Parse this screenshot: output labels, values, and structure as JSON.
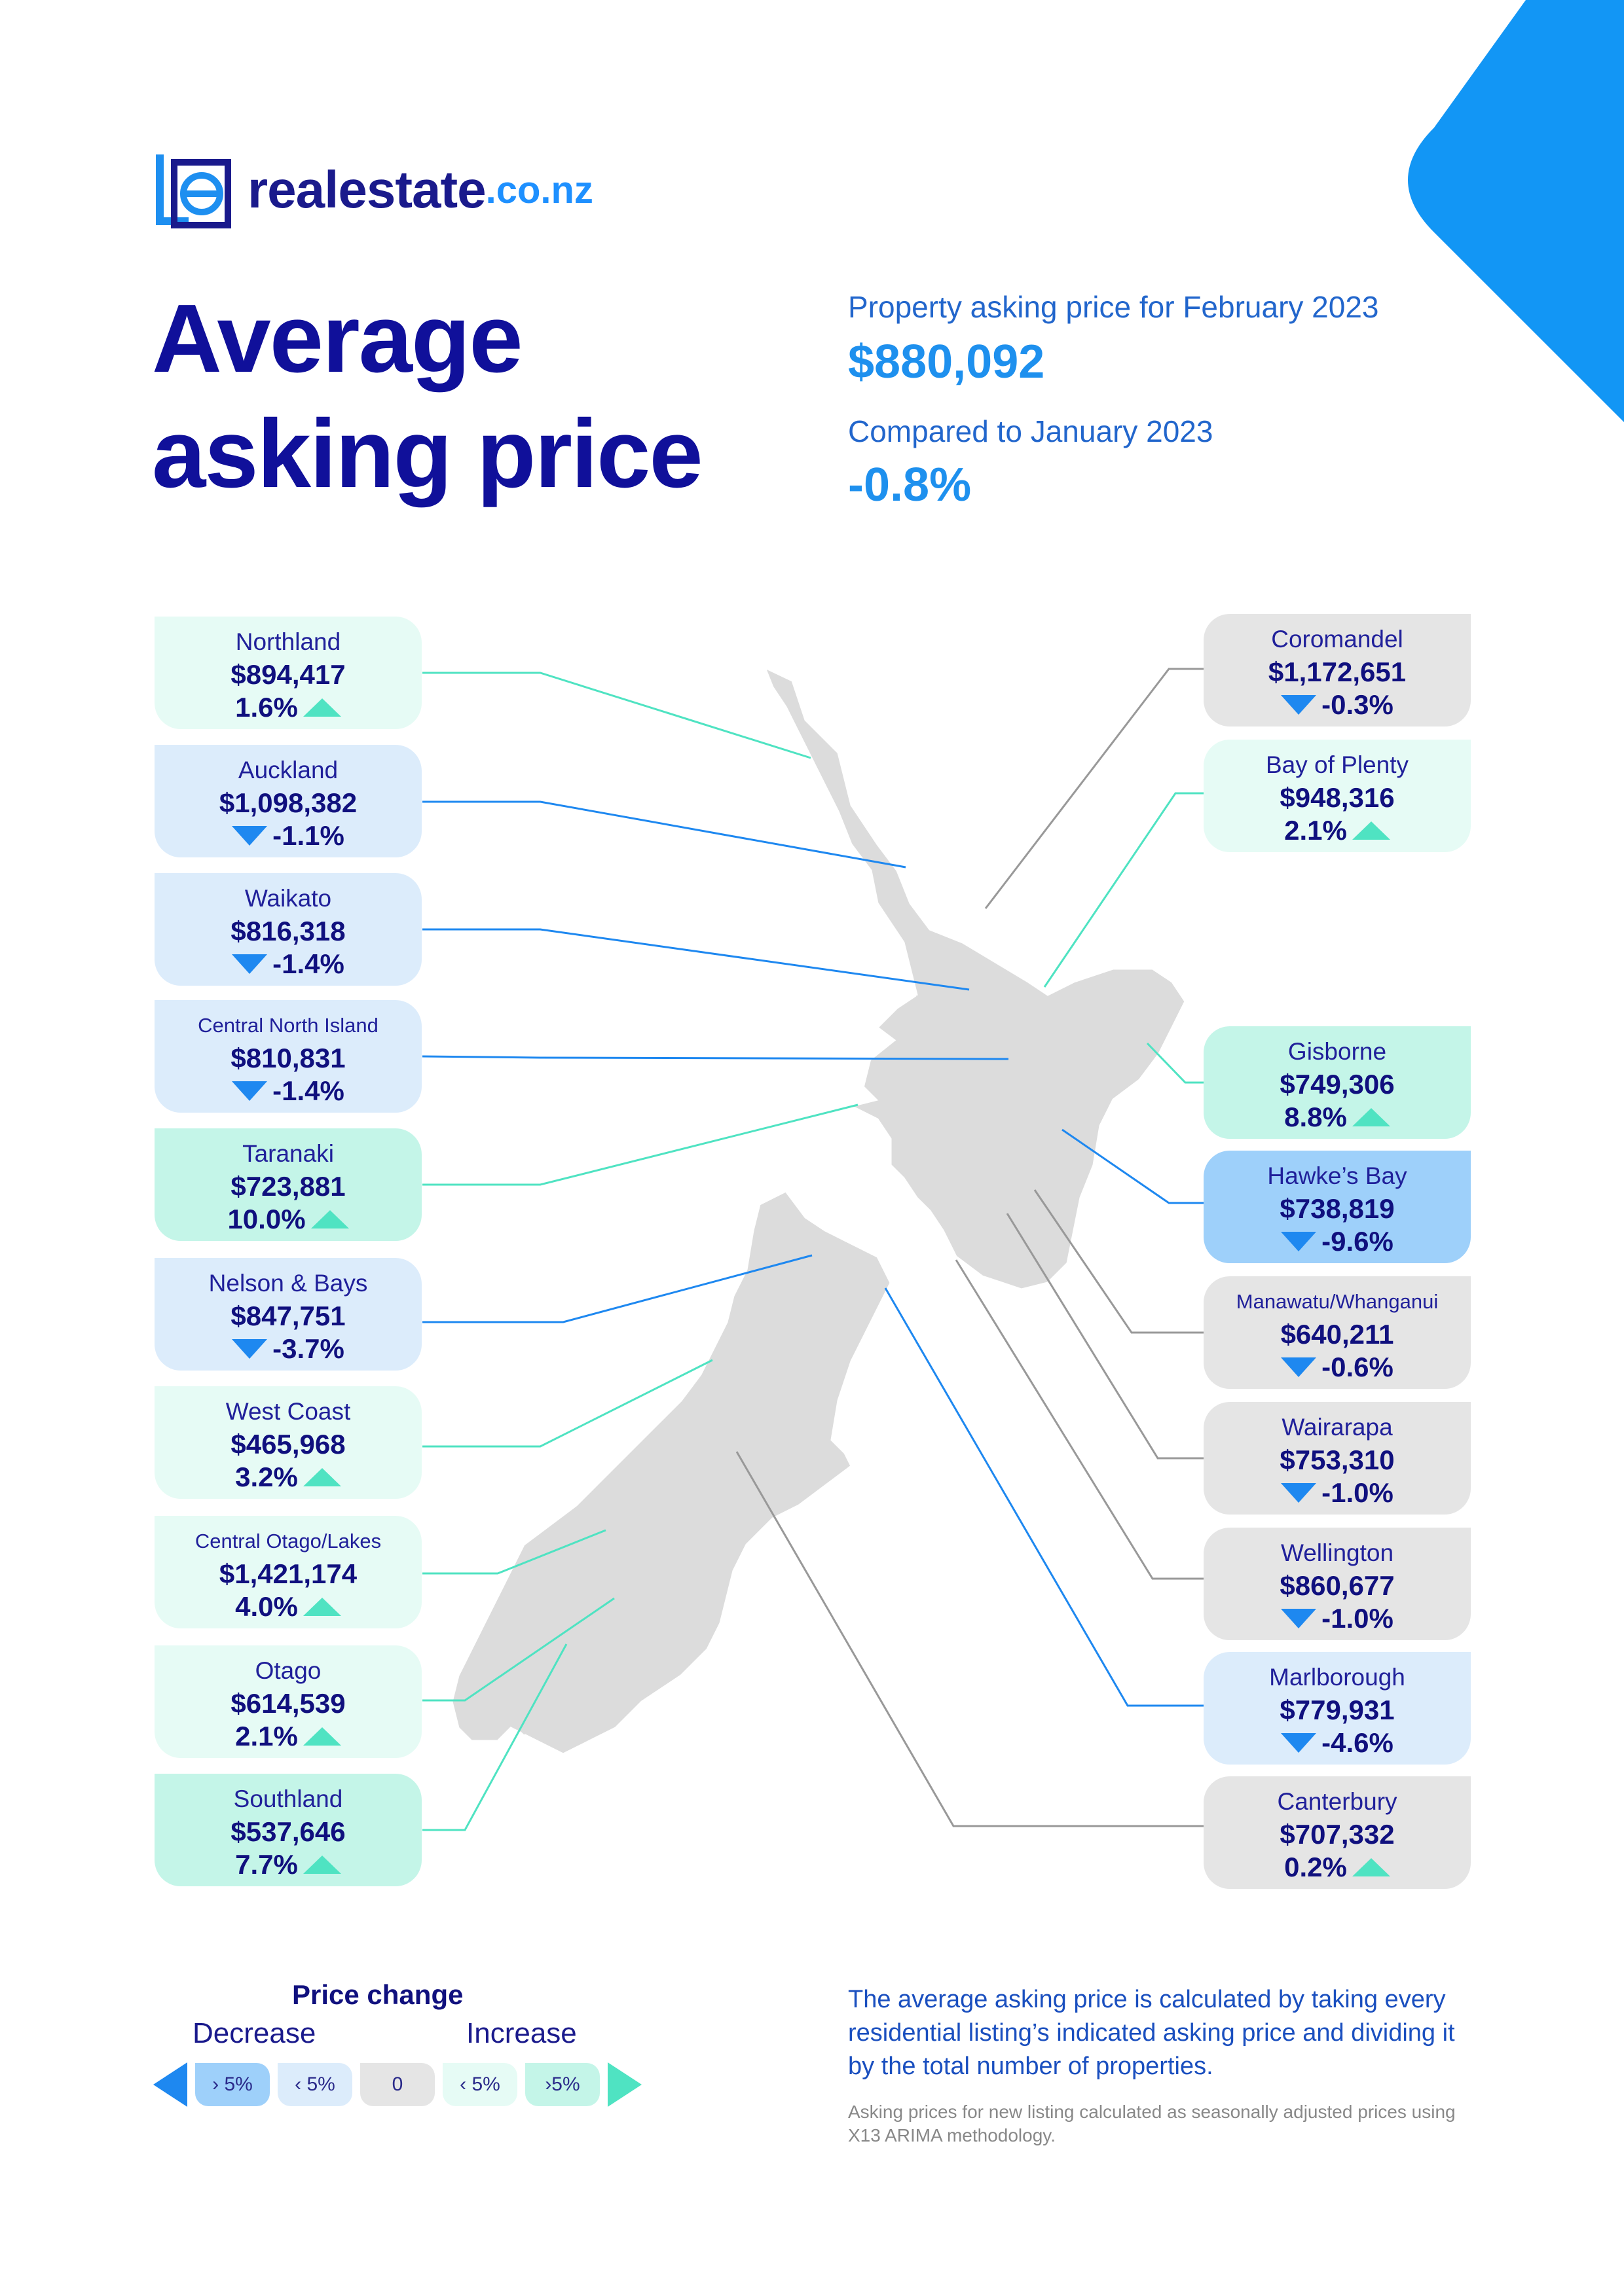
{
  "brand": {
    "word": "realestate",
    "suffix": ".co.nz"
  },
  "title": {
    "line1": "Average",
    "line2": "asking price"
  },
  "summary": {
    "label1": "Property asking price for February 2023",
    "value1": "$880,092",
    "label2": "Compared to January 2023",
    "value2": "-0.8%"
  },
  "colors": {
    "accent": "#1e90ff",
    "navy": "#10107e",
    "up": "#4fe3c2",
    "down": "#1e88f0"
  },
  "regions_left": [
    {
      "name": "Northland",
      "price": "$894,417",
      "change": "1.6%",
      "dir": "up"
    },
    {
      "name": "Auckland",
      "price": "$1,098,382",
      "change": "-1.1%",
      "dir": "down"
    },
    {
      "name": "Waikato",
      "price": "$816,318",
      "change": "-1.4%",
      "dir": "down"
    },
    {
      "name": "Central North Island",
      "price": "$810,831",
      "change": "-1.4%",
      "dir": "down"
    },
    {
      "name": "Taranaki",
      "price": "$723,881",
      "change": "10.0%",
      "dir": "up"
    },
    {
      "name": "Nelson & Bays",
      "price": "$847,751",
      "change": "-3.7%",
      "dir": "down"
    },
    {
      "name": "West Coast",
      "price": "$465,968",
      "change": "3.2%",
      "dir": "up"
    },
    {
      "name": "Central Otago/Lakes",
      "price": "$1,421,174",
      "change": "4.0%",
      "dir": "up"
    },
    {
      "name": "Otago",
      "price": "$614,539",
      "change": "2.1%",
      "dir": "up"
    },
    {
      "name": "Southland",
      "price": "$537,646",
      "change": "7.7%",
      "dir": "up"
    }
  ],
  "regions_right": [
    {
      "name": "Coromandel",
      "price": "$1,172,651",
      "change": "-0.3%",
      "dir": "down"
    },
    {
      "name": "Bay of Plenty",
      "price": "$948,316",
      "change": "2.1%",
      "dir": "up"
    },
    {
      "name": "Gisborne",
      "price": "$749,306",
      "change": "8.8%",
      "dir": "up"
    },
    {
      "name": "Hawke’s Bay",
      "price": "$738,819",
      "change": "-9.6%",
      "dir": "down"
    },
    {
      "name": "Manawatu/Whanganui",
      "price": "$640,211",
      "change": "-0.6%",
      "dir": "down"
    },
    {
      "name": "Wairarapa",
      "price": "$753,310",
      "change": "-1.0%",
      "dir": "down"
    },
    {
      "name": "Wellington",
      "price": "$860,677",
      "change": "-1.0%",
      "dir": "down"
    },
    {
      "name": "Marlborough",
      "price": "$779,931",
      "change": "-4.6%",
      "dir": "down"
    },
    {
      "name": "Canterbury",
      "price": "$707,332",
      "change": "0.2%",
      "dir": "up"
    }
  ],
  "legend": {
    "title": "Price change",
    "decrease": "Decrease",
    "increase": "Increase",
    "items": [
      "› 5%",
      "‹ 5%",
      "0",
      "‹ 5%",
      "›5%"
    ]
  },
  "notes": {
    "main": "The average asking price is calculated by taking every residential listing’s indicated asking price and dividing it by the total number of properties.",
    "small": "Asking prices for new listing calculated as seasonally adjusted prices using X13 ARIMA methodology."
  }
}
